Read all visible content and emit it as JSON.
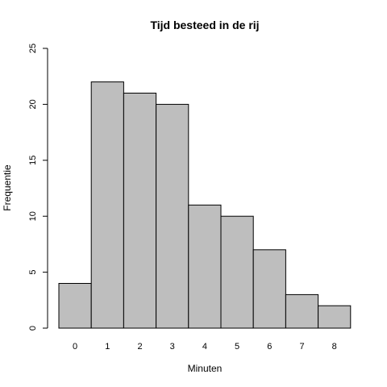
{
  "chart_data": {
    "type": "bar",
    "title": "Tijd besteed in de rij",
    "xlabel": "Minuten",
    "ylabel": "Frequentie",
    "categories": [
      "0",
      "1",
      "2",
      "3",
      "4",
      "5",
      "6",
      "7",
      "8"
    ],
    "values": [
      4,
      22,
      21,
      20,
      11,
      10,
      7,
      3,
      2
    ],
    "ylim": [
      0,
      25
    ],
    "yticks": [
      0,
      5,
      10,
      15,
      20,
      25
    ],
    "grid": false,
    "colors": {
      "bar_fill": "#bebebe",
      "bar_stroke": "#000000"
    }
  }
}
